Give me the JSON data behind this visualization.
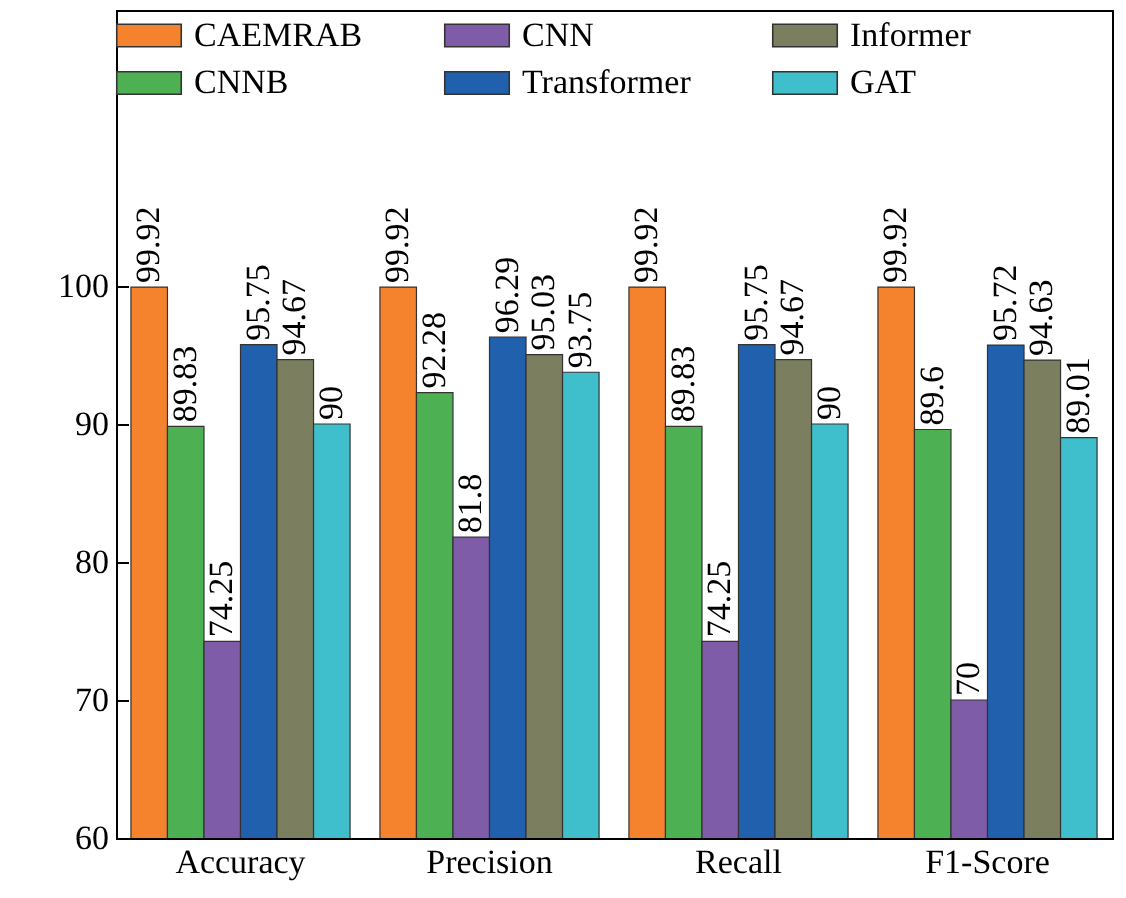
{
  "chart_data": {
    "type": "bar",
    "categories": [
      "Accuracy",
      "Precision",
      "Recall",
      "F1-Score"
    ],
    "series": [
      {
        "name": "CAEMRAB",
        "color": "#f5822d",
        "values": [
          99.92,
          99.92,
          99.92,
          99.92
        ]
      },
      {
        "name": "CNNB",
        "color": "#4db153",
        "values": [
          89.83,
          92.28,
          89.83,
          89.6
        ]
      },
      {
        "name": "CNN",
        "color": "#7f5ca8",
        "values": [
          74.25,
          81.8,
          74.25,
          70
        ]
      },
      {
        "name": "Transformer",
        "color": "#2160ad",
        "values": [
          95.75,
          96.29,
          95.75,
          95.72
        ]
      },
      {
        "name": "Informer",
        "color": "#7b7f5f",
        "values": [
          94.67,
          95.03,
          94.67,
          94.63
        ]
      },
      {
        "name": "GAT",
        "color": "#3fbfcb",
        "values": [
          90,
          93.75,
          90,
          89.01
        ]
      }
    ],
    "ylim": [
      60,
      120
    ],
    "yticks": [
      60,
      70,
      80,
      90,
      100
    ],
    "data_labels": true,
    "legend": "top"
  }
}
